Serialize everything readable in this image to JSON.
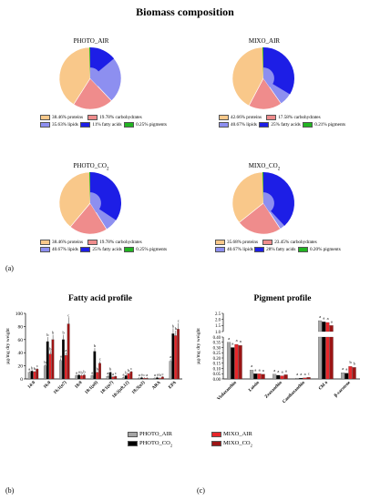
{
  "title": "Biomass composition",
  "panel_labels": {
    "a": "(a)",
    "b": "(b)",
    "c": "(c)"
  },
  "colors": {
    "proteins": "#f9c88a",
    "carbohydrates": "#ef8c8c",
    "lipids": "#8d8ff0",
    "fatty_acids": "#1d1ee6",
    "pigments": "#21b521",
    "photo_air": "#a6a6a6",
    "photo_co2": "#000000",
    "mixo_air": "#e8262a",
    "mixo_co2": "#9c1414"
  },
  "legend_labels": {
    "proteins": "proteins",
    "carbohydrates": "carbohydrates",
    "lipids": "lipids",
    "fatty_acids": "fatty acids",
    "pigments": "pigments"
  },
  "chart_data": [
    {
      "type": "pie",
      "title": "PHOTO_AIR",
      "slices": [
        {
          "key": "proteins",
          "label": "38.46%",
          "value": 38.46
        },
        {
          "key": "carbohydrates",
          "label": "19.78%",
          "value": 19.78
        },
        {
          "key": "lipids",
          "label": "35.63%",
          "value": 35.63
        },
        {
          "key": "fatty_acids",
          "label": "11%",
          "value": 11
        },
        {
          "key": "pigments",
          "label": "0.25%",
          "value": 0.25
        }
      ]
    },
    {
      "type": "pie",
      "title": "MIXO_AIR",
      "slices": [
        {
          "key": "proteins",
          "label": "42.66%",
          "value": 42.66
        },
        {
          "key": "carbohydrates",
          "label": "17.58%",
          "value": 17.58
        },
        {
          "key": "lipids",
          "label": "40.67%",
          "value": 40.67
        },
        {
          "key": "fatty_acids",
          "label": "25%",
          "value": 25
        },
        {
          "key": "pigments",
          "label": "0.21%",
          "value": 0.21
        }
      ]
    },
    {
      "type": "pie",
      "title": "PHOTO_CO",
      "title_sub": "2",
      "slices": [
        {
          "key": "proteins",
          "label": "38.46%",
          "value": 38.46
        },
        {
          "key": "carbohydrates",
          "label": "19.78%",
          "value": 19.78
        },
        {
          "key": "lipids",
          "label": "40.67%",
          "value": 40.67
        },
        {
          "key": "fatty_acids",
          "label": "25%",
          "value": 25
        },
        {
          "key": "pigments",
          "label": "0.25%",
          "value": 0.25
        }
      ]
    },
    {
      "type": "pie",
      "title": "MIXO_CO",
      "title_sub": "2",
      "slices": [
        {
          "key": "proteins",
          "label": "35.68%",
          "value": 35.68
        },
        {
          "key": "carbohydrates",
          "label": "23.45%",
          "value": 23.45
        },
        {
          "key": "lipids",
          "label": "40.67%",
          "value": 40.67
        },
        {
          "key": "fatty_acids",
          "label": "28%",
          "value": 28
        },
        {
          "key": "pigments",
          "label": "0.20%",
          "value": 0.2
        }
      ]
    },
    {
      "type": "bar",
      "title": "Fatty acid profile",
      "ylabel": "µg/mg dry weight",
      "ylim": [
        0,
        100
      ],
      "yticks": [
        "0",
        "20",
        "40",
        "60",
        "80",
        "100"
      ],
      "categories": [
        "14:0",
        "16:0",
        "16:1(n7)",
        "18:0",
        "18:1(n9)",
        "18:1(n7)",
        "18:2(n9,12)",
        "18:3(n3)",
        "ARA",
        "EPA"
      ],
      "series": [
        {
          "name": "PHOTO_AIR",
          "key": "photo_air",
          "values": [
            10,
            20,
            28,
            5,
            5,
            4,
            2,
            1,
            1,
            27
          ],
          "letters": [
            "a",
            "b",
            "a",
            "a",
            "a",
            "a",
            "a",
            "a",
            "a",
            "a"
          ]
        },
        {
          "name": "PHOTO_CO2",
          "key": "photo_co2",
          "values": [
            12,
            57,
            60,
            6,
            42,
            10,
            5,
            2,
            2,
            69
          ],
          "letters": [
            "b",
            "b",
            "b",
            "a",
            "b",
            "b",
            "b",
            "a",
            "a",
            "b"
          ]
        },
        {
          "name": "MIXO_AIR",
          "key": "mixo_air",
          "values": [
            11,
            38,
            36,
            5,
            10,
            3,
            8,
            1,
            1,
            66
          ],
          "letters": [
            "b",
            "b",
            "a",
            "b",
            "b",
            "a",
            "b",
            "c",
            "b",
            "b"
          ]
        },
        {
          "name": "MIXO_CO2",
          "key": "mixo_co2",
          "values": [
            15,
            60,
            84,
            6,
            24,
            4,
            11,
            1,
            3,
            76
          ],
          "letters": [
            "c",
            "b",
            "c",
            "b",
            "c",
            "c",
            "c",
            "a",
            "c",
            "c"
          ]
        }
      ]
    },
    {
      "type": "bar",
      "title": "Pigment profile",
      "ylabel": "µg/mg dry weight",
      "yticks": [
        "0.00",
        "0.05",
        "0.10",
        "0.15",
        "0.20",
        "0.25",
        "0.30",
        "0.35",
        "0.40",
        "1.0",
        "1.5",
        "2.0",
        "2.5"
      ],
      "categories": [
        "Violaxanthin",
        "Lutein",
        "Zeaxanthin",
        "Canthaxanthin",
        "Chl a",
        "β-carotene"
      ],
      "series": [
        {
          "name": "PHOTO_AIR",
          "key": "photo_air",
          "values": [
            0.35,
            0.085,
            0.045,
            0.008,
            1.9,
            0.06
          ],
          "letters": [
            "a",
            "a",
            "a",
            "a",
            "a",
            "a"
          ]
        },
        {
          "name": "PHOTO_CO2",
          "key": "photo_co2",
          "values": [
            0.3,
            0.05,
            0.035,
            0.008,
            1.8,
            0.055
          ],
          "letters": [
            "a",
            "a",
            "a",
            "a",
            "a",
            "a"
          ]
        },
        {
          "name": "MIXO_AIR",
          "key": "mixo_air",
          "values": [
            0.33,
            0.05,
            0.03,
            0.01,
            1.75,
            0.12
          ],
          "letters": [
            "a",
            "a",
            "a",
            "a",
            "a",
            "b"
          ]
        },
        {
          "name": "MIXO_CO2",
          "key": "mixo_co2",
          "values": [
            0.32,
            0.045,
            0.04,
            0.015,
            1.5,
            0.11
          ],
          "letters": [
            "a",
            "a",
            "a",
            "c",
            "a",
            "b"
          ]
        }
      ]
    }
  ],
  "bar_legend": [
    {
      "key": "photo_air",
      "label": "PHOTO_AIR",
      "sub": ""
    },
    {
      "key": "mixo_air",
      "label": "MIXO_AIR",
      "sub": ""
    },
    {
      "key": "photo_co2",
      "label": "PHOTO_CO",
      "sub": "2"
    },
    {
      "key": "mixo_co2",
      "label": "MIXO_CO",
      "sub": "2"
    }
  ]
}
